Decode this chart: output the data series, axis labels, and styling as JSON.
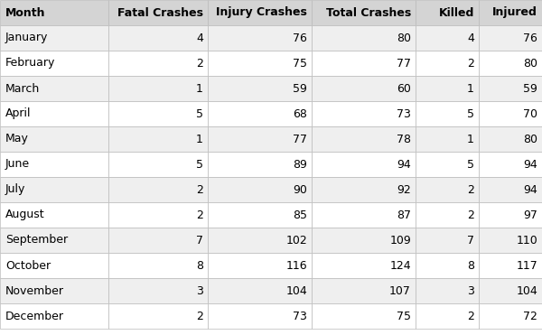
{
  "columns": [
    "Month",
    "Fatal Crashes",
    "Injury Crashes",
    "Total Crashes",
    "Killed",
    "Injured"
  ],
  "rows": [
    [
      "January",
      4,
      76,
      80,
      4,
      76
    ],
    [
      "February",
      2,
      75,
      77,
      2,
      80
    ],
    [
      "March",
      1,
      59,
      60,
      1,
      59
    ],
    [
      "April",
      5,
      68,
      73,
      5,
      70
    ],
    [
      "May",
      1,
      77,
      78,
      1,
      80
    ],
    [
      "June",
      5,
      89,
      94,
      5,
      94
    ],
    [
      "July",
      2,
      90,
      92,
      2,
      94
    ],
    [
      "August",
      2,
      85,
      87,
      2,
      97
    ],
    [
      "September",
      7,
      102,
      109,
      7,
      110
    ],
    [
      "October",
      8,
      116,
      124,
      8,
      117
    ],
    [
      "November",
      3,
      104,
      107,
      3,
      104
    ],
    [
      "December",
      2,
      73,
      75,
      2,
      72
    ]
  ],
  "header_bg": "#d4d4d4",
  "row_bg_odd": "#efefef",
  "row_bg_even": "#ffffff",
  "header_fontsize": 9.0,
  "cell_fontsize": 9.0,
  "header_fontweight": "bold",
  "col_aligns": [
    "left",
    "right",
    "right",
    "right",
    "right",
    "right"
  ],
  "figure_bg": "#ffffff",
  "line_color": "#bbbbbb",
  "figure_width": 6.0,
  "figure_height": 3.71,
  "dpi": 100
}
